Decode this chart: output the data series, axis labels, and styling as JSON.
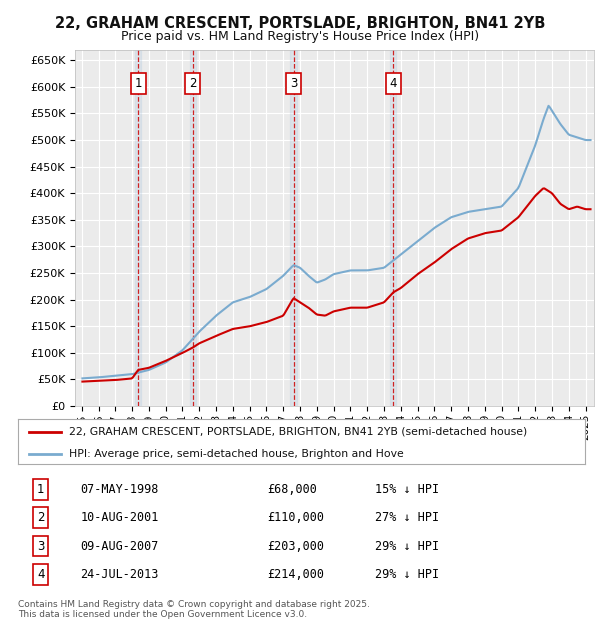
{
  "title1": "22, GRAHAM CRESCENT, PORTSLADE, BRIGHTON, BN41 2YB",
  "title2": "Price paid vs. HM Land Registry's House Price Index (HPI)",
  "ylim": [
    0,
    670000
  ],
  "yticks": [
    0,
    50000,
    100000,
    150000,
    200000,
    250000,
    300000,
    350000,
    400000,
    450000,
    500000,
    550000,
    600000,
    650000
  ],
  "xlim_start": 1994.6,
  "xlim_end": 2025.5,
  "background_color": "#ffffff",
  "plot_bg_color": "#ebebeb",
  "grid_color": "#ffffff",
  "sale_color": "#cc0000",
  "hpi_color": "#7aabcf",
  "sale_label": "22, GRAHAM CRESCENT, PORTSLADE, BRIGHTON, BN41 2YB (semi-detached house)",
  "hpi_label": "HPI: Average price, semi-detached house, Brighton and Hove",
  "transactions": [
    {
      "num": 1,
      "date": "07-MAY-1998",
      "date_dec": 1998.36,
      "price": 68000,
      "pct": "15% ↓ HPI"
    },
    {
      "num": 2,
      "date": "10-AUG-2001",
      "date_dec": 2001.61,
      "price": 110000,
      "pct": "27% ↓ HPI"
    },
    {
      "num": 3,
      "date": "09-AUG-2007",
      "date_dec": 2007.61,
      "price": 203000,
      "pct": "29% ↓ HPI"
    },
    {
      "num": 4,
      "date": "24-JUL-2013",
      "date_dec": 2013.56,
      "price": 214000,
      "pct": "29% ↓ HPI"
    }
  ],
  "footnote1": "Contains HM Land Registry data © Crown copyright and database right 2025.",
  "footnote2": "This data is licensed under the Open Government Licence v3.0."
}
